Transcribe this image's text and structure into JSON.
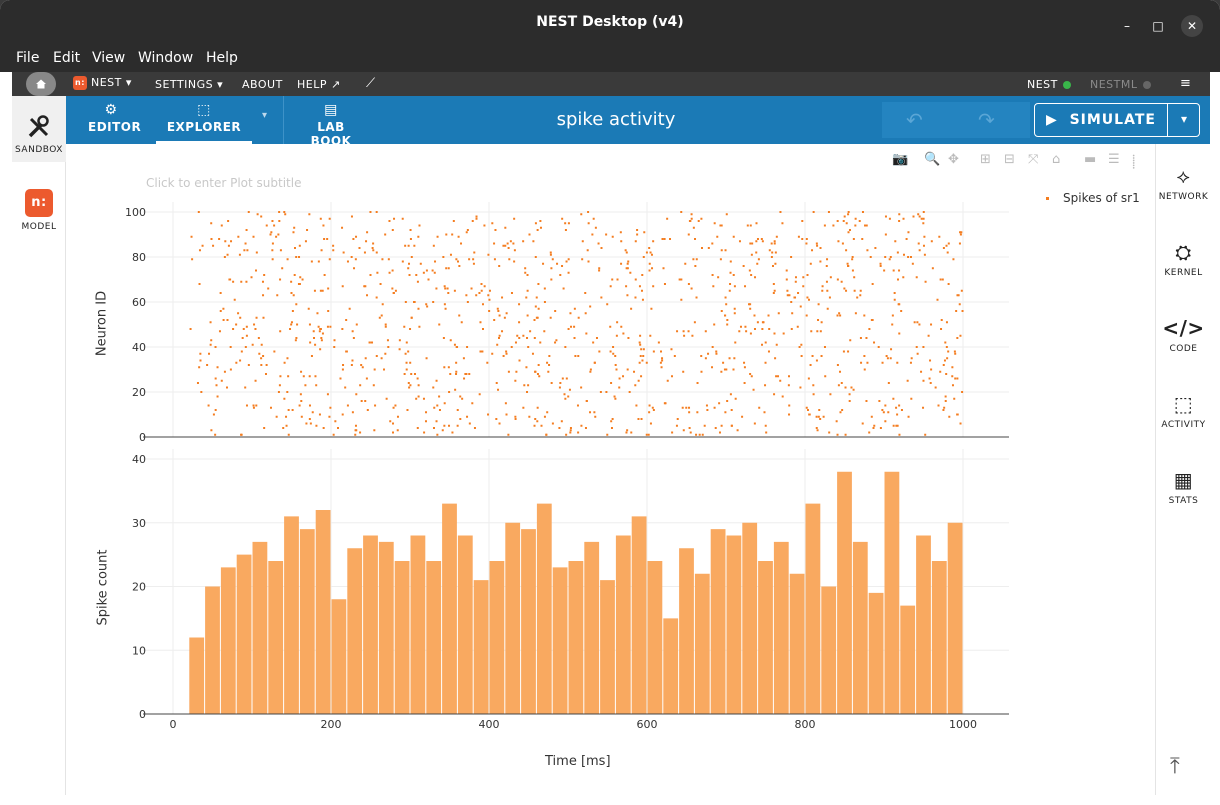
{
  "window": {
    "title": "NEST Desktop (v4)",
    "minimize": "–",
    "maximize": "□",
    "close": "✕"
  },
  "menubar": {
    "items": [
      "File",
      "Edit",
      "View",
      "Window",
      "Help"
    ]
  },
  "appbar": {
    "home_icon": "home-icon",
    "nest_label": "NEST",
    "settings_label": "SETTINGS",
    "about_label": "ABOUT",
    "help_label": "HELP",
    "nest_status_label": "NEST",
    "nest_status_color": "#39b54a",
    "nestml_status_label": "NESTML",
    "nestml_status_color": "#777777"
  },
  "leftnav": {
    "sandbox_label": "SANDBOX",
    "model_label": "MODEL"
  },
  "toolbar": {
    "editor_label": "EDITOR",
    "explorer_label": "EXPLORER",
    "labbook_label": "LAB BOOK",
    "project_title": "spike activity",
    "simulate_label": "SIMULATE"
  },
  "rightnav": {
    "network_label": "NETWORK",
    "kernel_label": "KERNEL",
    "code_label": "CODE",
    "activity_label": "ACTIVITY",
    "stats_label": "STATS"
  },
  "plot": {
    "subtitle_placeholder": "Click to enter Plot subtitle",
    "legend_label": "Spikes of sr1",
    "ylabel_top": "Neuron ID",
    "ylabel_bottom": "Spike count",
    "xlabel": "Time [ms]"
  },
  "chart_data": [
    {
      "type": "scatter",
      "name": "Spikes of sr1",
      "color": "#f47d20",
      "xlim": [
        0,
        1000
      ],
      "ylim": [
        0,
        100
      ],
      "yticks": [
        0,
        20,
        40,
        60,
        80,
        100
      ],
      "xticks": [
        0,
        200,
        400,
        600,
        800,
        1000
      ],
      "ylabel": "Neuron ID",
      "points_note": "dense raster of ~1200 spikes from neurons 1-100 over 0-1000 ms"
    },
    {
      "type": "bar",
      "color": "#f9a960",
      "xlim": [
        0,
        1000
      ],
      "ylim": [
        0,
        40
      ],
      "yticks": [
        0,
        10,
        20,
        30,
        40
      ],
      "xticks": [
        0,
        200,
        400,
        600,
        800,
        1000
      ],
      "ylabel": "Spike count",
      "xlabel": "Time [ms]",
      "bin_width": 20,
      "bin_starts": [
        20,
        40,
        60,
        80,
        100,
        120,
        140,
        160,
        180,
        200,
        220,
        240,
        260,
        280,
        300,
        320,
        340,
        360,
        380,
        400,
        420,
        440,
        460,
        480,
        500,
        520,
        540,
        560,
        580,
        600,
        620,
        640,
        660,
        680,
        700,
        720,
        740,
        760,
        780,
        800,
        820,
        840,
        860,
        880,
        900,
        920,
        940,
        960,
        980
      ],
      "values": [
        12,
        20,
        23,
        25,
        27,
        24,
        31,
        29,
        32,
        18,
        26,
        28,
        27,
        24,
        28,
        24,
        33,
        28,
        21,
        24,
        30,
        29,
        33,
        23,
        24,
        27,
        21,
        28,
        31,
        24,
        15,
        26,
        22,
        29,
        28,
        30,
        24,
        27,
        22,
        33,
        20,
        38,
        27,
        19,
        38,
        17,
        28,
        24,
        30
      ]
    }
  ]
}
